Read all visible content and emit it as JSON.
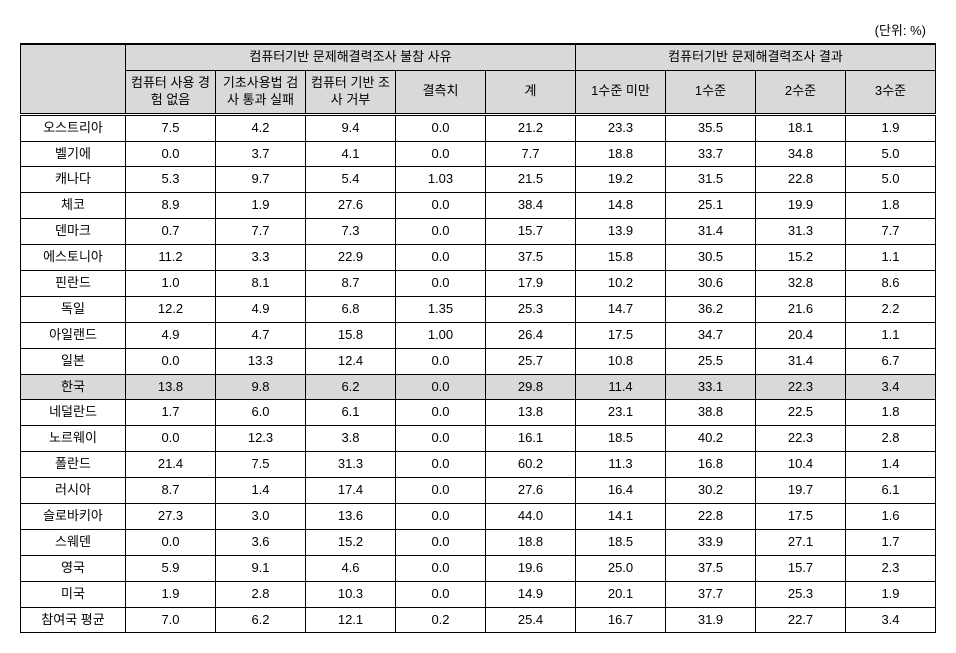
{
  "table": {
    "unit_label": "(단위: %)",
    "header_group_1": "컴퓨터기반 문제해결력조사 불참 사유",
    "header_group_2": "컴퓨터기반 문제해결력조사 결과",
    "sub_headers": [
      "컴퓨터 사용 경험 없음",
      "기초사용법 검사 통과 실패",
      "컴퓨터 기반 조사 거부",
      "결측치",
      "계",
      "1수준 미만",
      "1수준",
      "2수준",
      "3수준"
    ],
    "col_widths": {
      "label": "100px",
      "data": "auto"
    },
    "highlighted_row_index": 10,
    "rows": [
      {
        "label": "오스트리아",
        "values": [
          "7.5",
          "4.2",
          "9.4",
          "0.0",
          "21.2",
          "23.3",
          "35.5",
          "18.1",
          "1.9"
        ]
      },
      {
        "label": "벨기에",
        "values": [
          "0.0",
          "3.7",
          "4.1",
          "0.0",
          "7.7",
          "18.8",
          "33.7",
          "34.8",
          "5.0"
        ]
      },
      {
        "label": "캐나다",
        "values": [
          "5.3",
          "9.7",
          "5.4",
          "1.03",
          "21.5",
          "19.2",
          "31.5",
          "22.8",
          "5.0"
        ]
      },
      {
        "label": "체코",
        "values": [
          "8.9",
          "1.9",
          "27.6",
          "0.0",
          "38.4",
          "14.8",
          "25.1",
          "19.9",
          "1.8"
        ]
      },
      {
        "label": "덴마크",
        "values": [
          "0.7",
          "7.7",
          "7.3",
          "0.0",
          "15.7",
          "13.9",
          "31.4",
          "31.3",
          "7.7"
        ]
      },
      {
        "label": "에스토니아",
        "values": [
          "11.2",
          "3.3",
          "22.9",
          "0.0",
          "37.5",
          "15.8",
          "30.5",
          "15.2",
          "1.1"
        ]
      },
      {
        "label": "핀란드",
        "values": [
          "1.0",
          "8.1",
          "8.7",
          "0.0",
          "17.9",
          "10.2",
          "30.6",
          "32.8",
          "8.6"
        ]
      },
      {
        "label": "독일",
        "values": [
          "12.2",
          "4.9",
          "6.8",
          "1.35",
          "25.3",
          "14.7",
          "36.2",
          "21.6",
          "2.2"
        ]
      },
      {
        "label": "아일랜드",
        "values": [
          "4.9",
          "4.7",
          "15.8",
          "1.00",
          "26.4",
          "17.5",
          "34.7",
          "20.4",
          "1.1"
        ]
      },
      {
        "label": "일본",
        "values": [
          "0.0",
          "13.3",
          "12.4",
          "0.0",
          "25.7",
          "10.8",
          "25.5",
          "31.4",
          "6.7"
        ]
      },
      {
        "label": "한국",
        "values": [
          "13.8",
          "9.8",
          "6.2",
          "0.0",
          "29.8",
          "11.4",
          "33.1",
          "22.3",
          "3.4"
        ]
      },
      {
        "label": "네덜란드",
        "values": [
          "1.7",
          "6.0",
          "6.1",
          "0.0",
          "13.8",
          "23.1",
          "38.8",
          "22.5",
          "1.8"
        ]
      },
      {
        "label": "노르웨이",
        "values": [
          "0.0",
          "12.3",
          "3.8",
          "0.0",
          "16.1",
          "18.5",
          "40.2",
          "22.3",
          "2.8"
        ]
      },
      {
        "label": "폴란드",
        "values": [
          "21.4",
          "7.5",
          "31.3",
          "0.0",
          "60.2",
          "11.3",
          "16.8",
          "10.4",
          "1.4"
        ]
      },
      {
        "label": "러시아",
        "values": [
          "8.7",
          "1.4",
          "17.4",
          "0.0",
          "27.6",
          "16.4",
          "30.2",
          "19.7",
          "6.1"
        ]
      },
      {
        "label": "슬로바키아",
        "values": [
          "27.3",
          "3.0",
          "13.6",
          "0.0",
          "44.0",
          "14.1",
          "22.8",
          "17.5",
          "1.6"
        ]
      },
      {
        "label": "스웨덴",
        "values": [
          "0.0",
          "3.6",
          "15.2",
          "0.0",
          "18.8",
          "18.5",
          "33.9",
          "27.1",
          "1.7"
        ]
      },
      {
        "label": "영국",
        "values": [
          "5.9",
          "9.1",
          "4.6",
          "0.0",
          "19.6",
          "25.0",
          "37.5",
          "15.7",
          "2.3"
        ]
      },
      {
        "label": "미국",
        "values": [
          "1.9",
          "2.8",
          "10.3",
          "0.0",
          "14.9",
          "20.1",
          "37.7",
          "25.3",
          "1.9"
        ]
      },
      {
        "label": "참여국 평균",
        "values": [
          "7.0",
          "6.2",
          "12.1",
          "0.2",
          "25.4",
          "16.7",
          "31.9",
          "22.7",
          "3.4"
        ]
      }
    ]
  }
}
